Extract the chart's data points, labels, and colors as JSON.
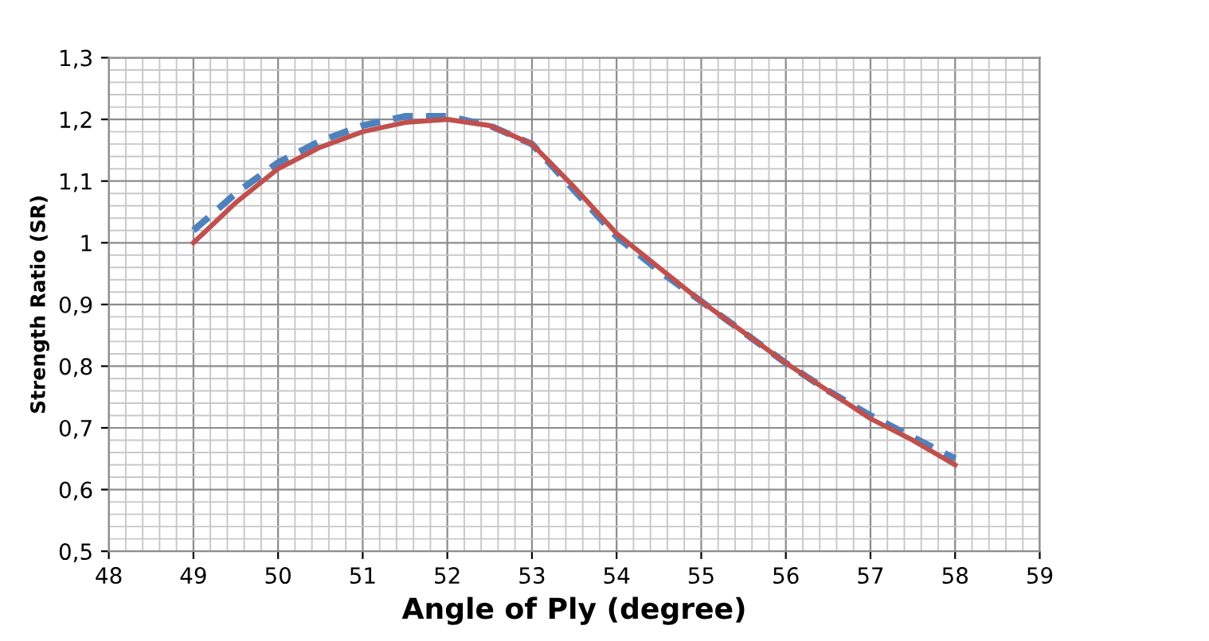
{
  "chart_data": {
    "type": "line",
    "xlabel": "Angle of Ply (degree)",
    "ylabel": "Strength Ratio (SR)",
    "x": [
      49,
      49.5,
      50,
      50.5,
      51,
      51.5,
      52,
      52.5,
      53,
      53.5,
      54,
      54.5,
      55,
      55.5,
      56,
      56.5,
      57,
      57.5,
      58
    ],
    "series": [
      {
        "color": "#4f81bd",
        "line_style": "dashed",
        "values": [
          1.02,
          1.08,
          1.13,
          1.165,
          1.19,
          1.205,
          1.205,
          1.19,
          1.16,
          1.085,
          1.01,
          0.955,
          0.905,
          0.855,
          0.805,
          0.76,
          0.72,
          0.685,
          0.65
        ]
      },
      {
        "color": "#c0504d",
        "line_style": "solid",
        "values": [
          1.0,
          1.065,
          1.12,
          1.155,
          1.18,
          1.195,
          1.2,
          1.19,
          1.16,
          1.09,
          1.015,
          0.96,
          0.905,
          0.855,
          0.805,
          0.76,
          0.715,
          0.68,
          0.64
        ]
      }
    ],
    "xlim": [
      48,
      59
    ],
    "xticks": [
      48,
      49,
      50,
      51,
      52,
      53,
      54,
      55,
      56,
      57,
      58,
      59
    ],
    "ylim": [
      0.5,
      1.3
    ],
    "yticks": [
      {
        "value": 0.5,
        "label": "0,5"
      },
      {
        "value": 0.6,
        "label": "0,6"
      },
      {
        "value": 0.7,
        "label": "0,7"
      },
      {
        "value": 0.8,
        "label": "0,8"
      },
      {
        "value": 0.9,
        "label": "0,9"
      },
      1,
      {
        "value": 1.1,
        "label": "1,1"
      },
      {
        "value": 1.2,
        "label": "1,2"
      },
      {
        "value": 1.3,
        "label": "1,3"
      }
    ],
    "grid": true,
    "marker": "none"
  }
}
